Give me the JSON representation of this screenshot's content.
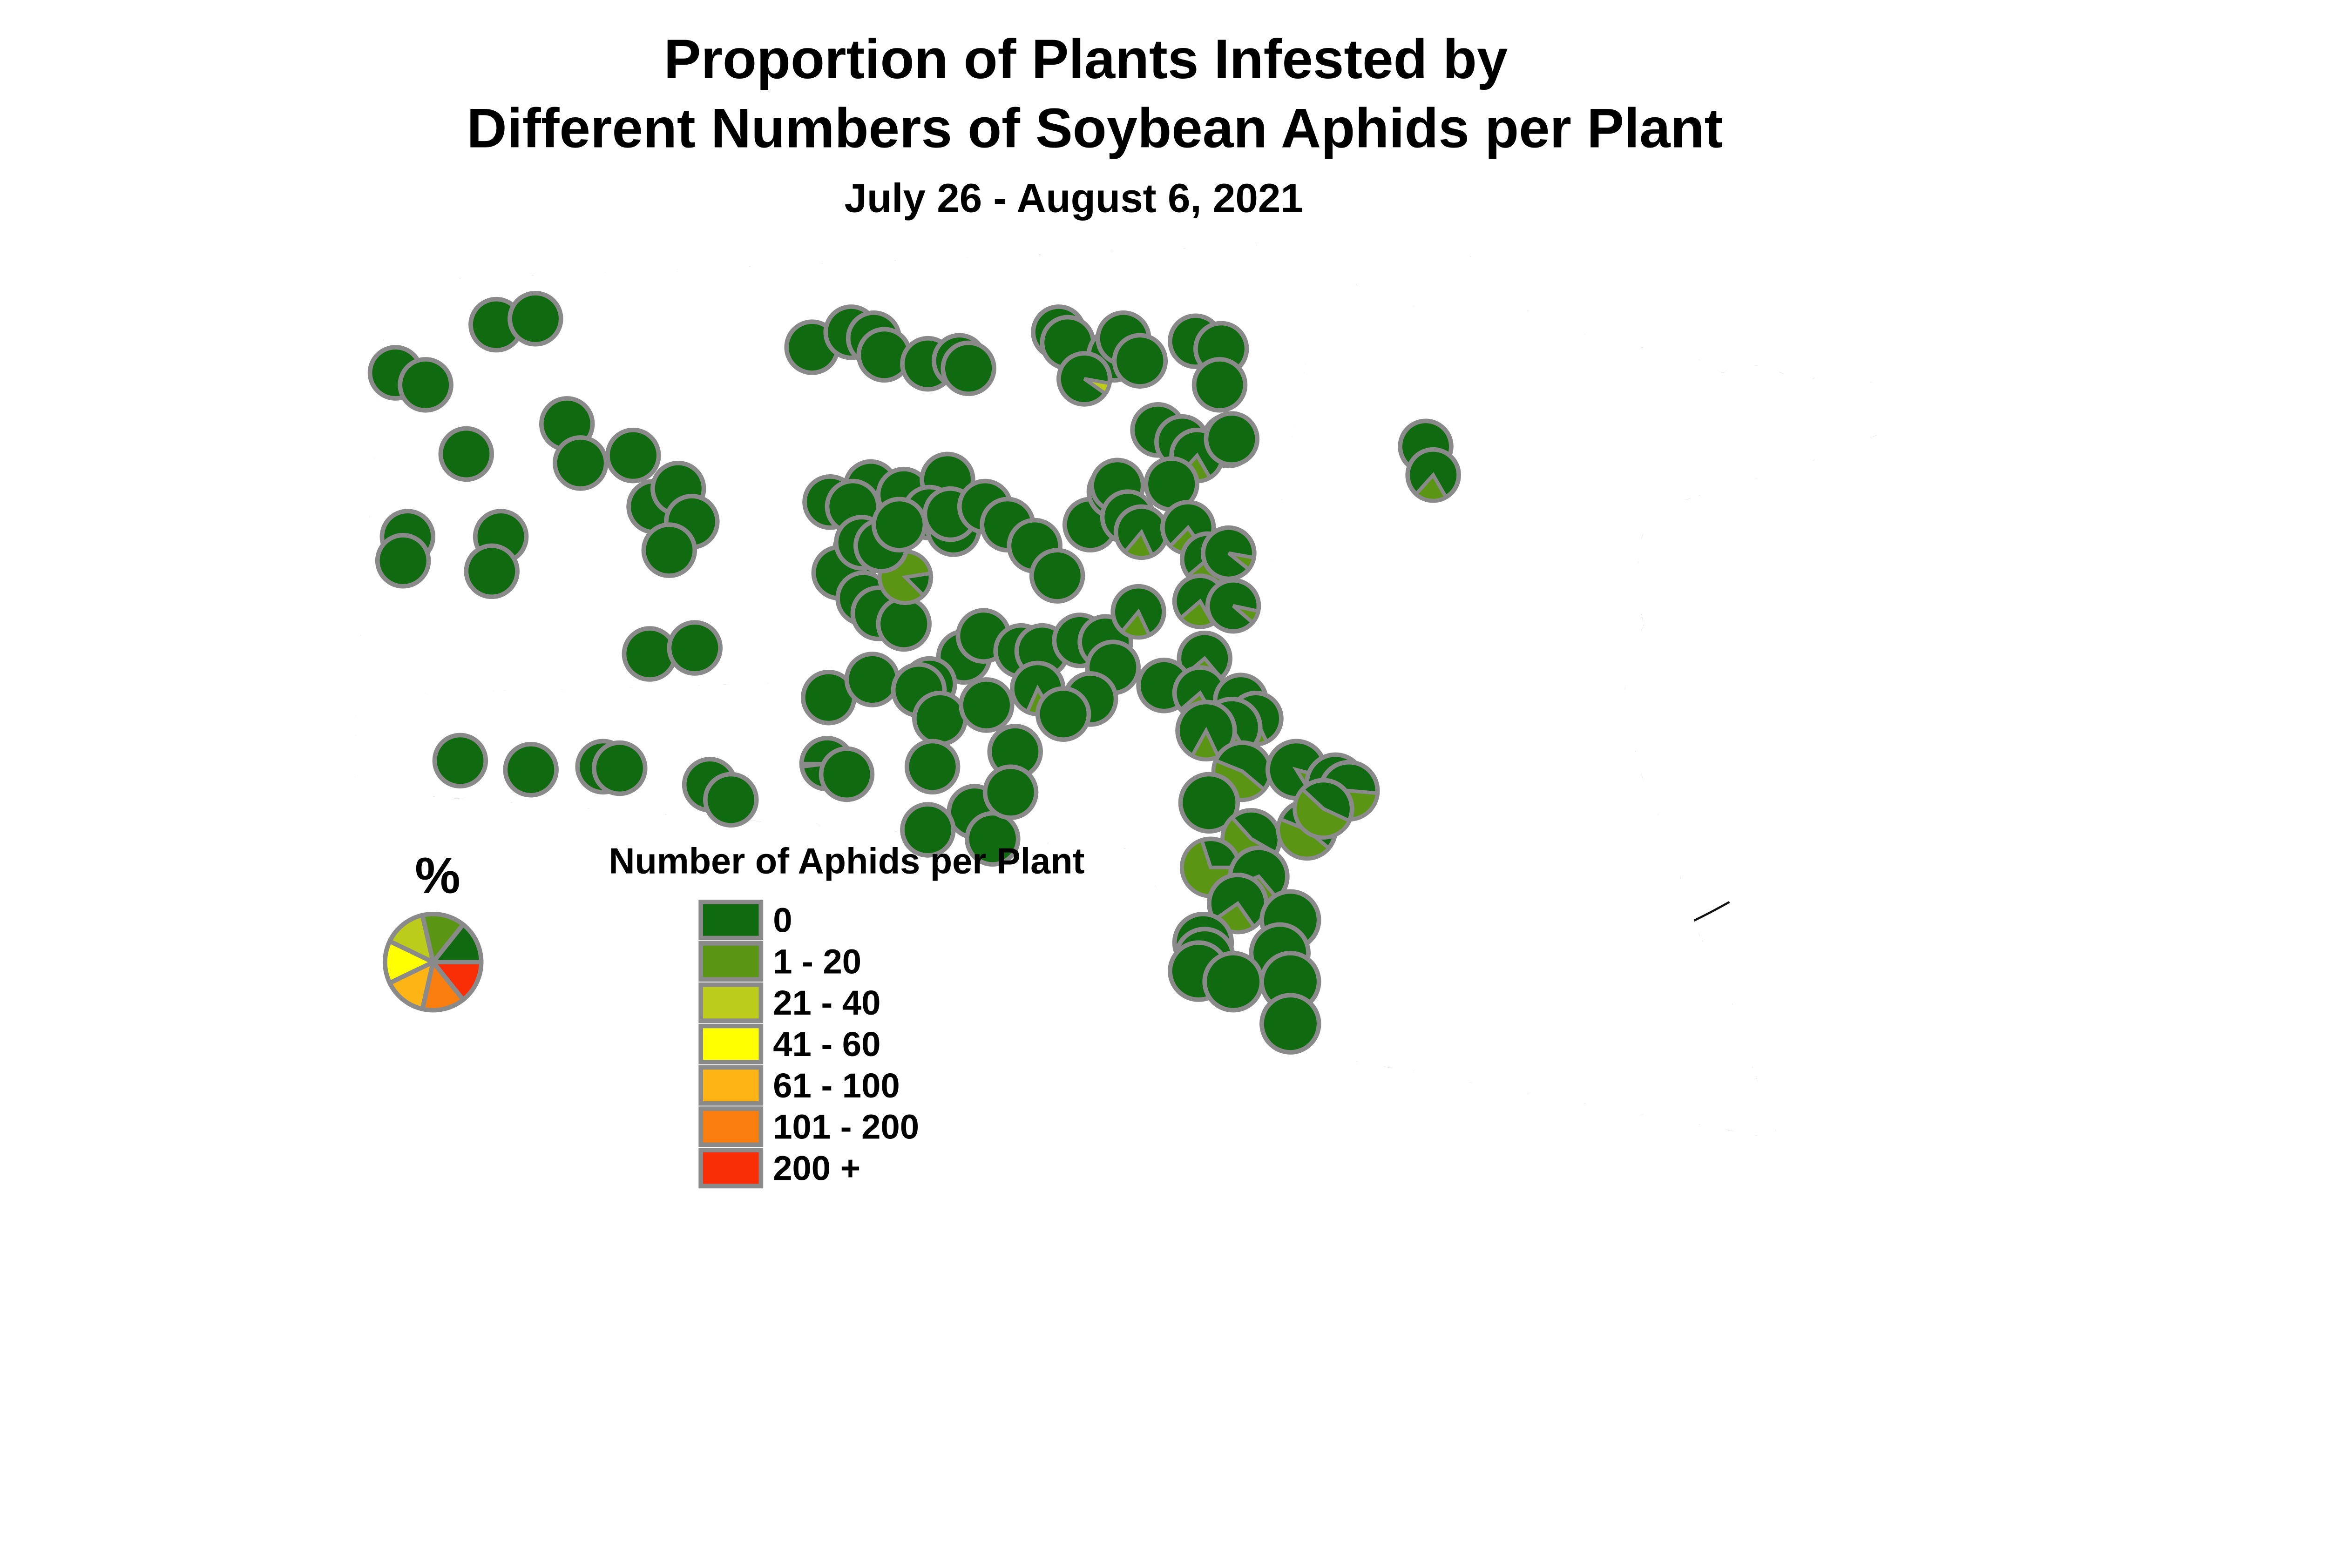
{
  "title": {
    "line1": "Proportion of Plants Infested by",
    "line2": "Different Numbers of Soybean Aphids per Plant",
    "subtitle": "July 26 - August 6, 2021"
  },
  "legend": {
    "percent_label": "%",
    "header": "Number of Aphids per Plant",
    "items": [
      {
        "label": "0",
        "color": "#106B10"
      },
      {
        "label": "1 - 20",
        "color": "#5A9614"
      },
      {
        "label": "21 - 40",
        "color": "#BCCC1A"
      },
      {
        "label": "41 - 60",
        "color": "#FFFF00"
      },
      {
        "label": "61 - 100",
        "color": "#FDB515"
      },
      {
        "label": "101 - 200",
        "color": "#F97E0D"
      },
      {
        "label": "200 +",
        "color": "#F92E06"
      }
    ],
    "sample_pie_slice_order": [
      "200 +",
      "101 - 200",
      "61 - 100",
      "41 - 60",
      "21 - 40",
      "1 - 20",
      "0"
    ]
  },
  "map": {
    "background": "#FFFFFF",
    "state_border_color": "#000000",
    "county_line_color": "#1A1A1A",
    "marker_outline_color": "#8A8A8A",
    "marker_columns": [
      "x",
      "y",
      "wedge_pct",
      "wedge_start_deg",
      "wedge_color_key",
      "radius"
    ],
    "markers": [
      [
        330,
        216
      ],
      [
        356,
        212
      ],
      [
        263,
        248
      ],
      [
        283,
        256
      ],
      [
        310,
        302
      ],
      [
        377,
        282
      ],
      [
        386,
        308
      ],
      [
        421,
        303
      ],
      [
        435,
        337
      ],
      [
        271,
        357
      ],
      [
        268,
        373
      ],
      [
        333,
        357
      ],
      [
        327,
        380
      ],
      [
        451,
        325
      ],
      [
        460,
        347
      ],
      [
        445,
        366
      ],
      [
        540,
        231
      ],
      [
        566,
        221
      ],
      [
        581,
        225
      ],
      [
        588,
        236
      ],
      [
        617,
        242
      ],
      [
        638,
        240
      ],
      [
        644,
        245
      ],
      [
        704,
        221
      ],
      [
        710,
        228
      ],
      [
        741,
        236
      ],
      [
        721,
        252,
        7,
        100,
        "g2"
      ],
      [
        747,
        225
      ],
      [
        758,
        240
      ],
      [
        795,
        227
      ],
      [
        812,
        232
      ],
      [
        811,
        256
      ],
      [
        770,
        286
      ],
      [
        786,
        294
      ],
      [
        817,
        293
      ],
      [
        796,
        303,
        20,
        150
      ],
      [
        819,
        292
      ],
      [
        779,
        322
      ],
      [
        948,
        297
      ],
      [
        953,
        316,
        20,
        150
      ],
      [
        552,
        334
      ],
      [
        579,
        324
      ],
      [
        601,
        329
      ],
      [
        630,
        319
      ],
      [
        618,
        341
      ],
      [
        634,
        352
      ],
      [
        572,
        366
      ],
      [
        558,
        381
      ],
      [
        574,
        398
      ],
      [
        584,
        408
      ],
      [
        601,
        415
      ],
      [
        602,
        384,
        85,
        135
      ],
      [
        567,
        337
      ],
      [
        573,
        361
      ],
      [
        586,
        363
      ],
      [
        598,
        349
      ],
      [
        632,
        342
      ],
      [
        655,
        337
      ],
      [
        670,
        349
      ],
      [
        688,
        363
      ],
      [
        703,
        383
      ],
      [
        725,
        349
      ],
      [
        741,
        327
      ],
      [
        641,
        437
      ],
      [
        654,
        423
      ],
      [
        679,
        433,
        12,
        120
      ],
      [
        693,
        433
      ],
      [
        690,
        458,
        15,
        150
      ],
      [
        718,
        426
      ],
      [
        735,
        427
      ],
      [
        740,
        444
      ],
      [
        725,
        465
      ],
      [
        707,
        475
      ],
      [
        618,
        455,
        8,
        178
      ],
      [
        743,
        323
      ],
      [
        750,
        344,
        15,
        160
      ],
      [
        759,
        354,
        18,
        155
      ],
      [
        790,
        351,
        22,
        145
      ],
      [
        803,
        372,
        25,
        140
      ],
      [
        817,
        368,
        8,
        100
      ],
      [
        798,
        400,
        22,
        150
      ],
      [
        820,
        403,
        8,
        102
      ],
      [
        757,
        407,
        18,
        155
      ],
      [
        801,
        438,
        25,
        140
      ],
      [
        774,
        456
      ],
      [
        798,
        461,
        22,
        150
      ],
      [
        825,
        466,
        12,
        160
      ],
      [
        835,
        478,
        15,
        155
      ],
      [
        551,
        464
      ],
      [
        580,
        452
      ],
      [
        611,
        459
      ],
      [
        625,
        478
      ],
      [
        656,
        469
      ],
      [
        675,
        500
      ],
      [
        550,
        508,
        2,
        263
      ],
      [
        563,
        515
      ],
      [
        620,
        510
      ],
      [
        648,
        540
      ],
      [
        617,
        552
      ],
      [
        660,
        558
      ],
      [
        672,
        527
      ],
      [
        306,
        506
      ],
      [
        353,
        512
      ],
      [
        401,
        510
      ],
      [
        412,
        511
      ],
      [
        432,
        435
      ],
      [
        462,
        431
      ],
      [
        472,
        522
      ],
      [
        486,
        532
      ],
      [
        819,
        484,
        20,
        150,
        "g1",
        19
      ],
      [
        802,
        486,
        15,
        155,
        "g1",
        19
      ],
      [
        826,
        513,
        45,
        130,
        "g1",
        19
      ],
      [
        862,
        512,
        12,
        105,
        "g1",
        19
      ],
      [
        888,
        521,
        35,
        135,
        "g1",
        19
      ],
      [
        897,
        526,
        50,
        95,
        "g1",
        19
      ],
      [
        804,
        534,
        0,
        0,
        "g1",
        19
      ],
      [
        832,
        558,
        55,
        120,
        "g1",
        19
      ],
      [
        869,
        552,
        45,
        130,
        "g1",
        19
      ],
      [
        805,
        577,
        70,
        90,
        "g1",
        19
      ],
      [
        837,
        583,
        30,
        140,
        "g1",
        19
      ],
      [
        823,
        601,
        25,
        145,
        "g1",
        19
      ],
      [
        858,
        612,
        0,
        0,
        "g1",
        19
      ],
      [
        880,
        538,
        55,
        115,
        "g1",
        19
      ],
      [
        851,
        634,
        0,
        0,
        "g1",
        19
      ],
      [
        858,
        653,
        0,
        0,
        "g1",
        19
      ],
      [
        800,
        627,
        0,
        0,
        "g1",
        19
      ],
      [
        801,
        637,
        0,
        0,
        "g1",
        19
      ],
      [
        858,
        681,
        0,
        0,
        "g1",
        19
      ],
      [
        797,
        646,
        0,
        0,
        "g1",
        19
      ],
      [
        820,
        653,
        0,
        0,
        "g1",
        19
      ]
    ],
    "wedge_colors": {
      "g0": "#106B10",
      "g1": "#5A9614",
      "g2": "#BCCC1A"
    }
  }
}
